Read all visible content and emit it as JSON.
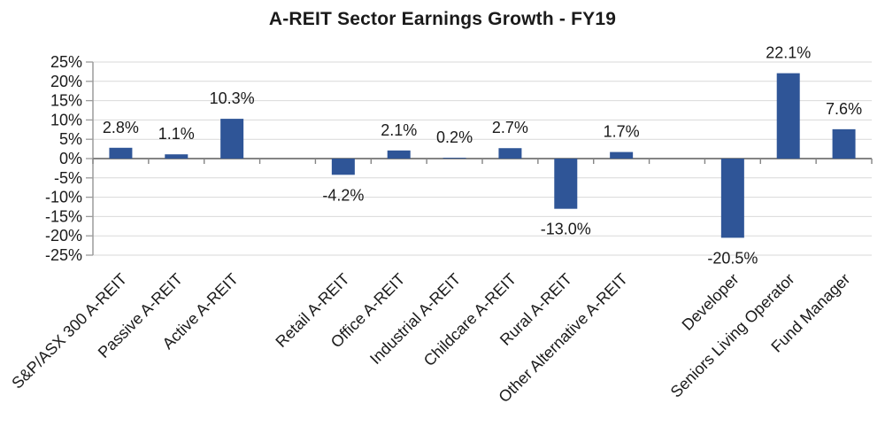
{
  "chart_data": {
    "type": "bar",
    "title": "A-REIT Sector Earnings Growth - FY19",
    "legend": "none",
    "grid": true,
    "bar_color": "#2F5597",
    "colors": {
      "gridline": "#D9D9D9",
      "axis_line": "#9B9B9B",
      "zero_line": "#848484",
      "text": "#1A1A1A"
    },
    "axis": {
      "ylim": [
        -25,
        25
      ],
      "step": 5,
      "y_ticks": [
        "25%",
        "20%",
        "15%",
        "10%",
        "5%",
        "0%",
        "-5%",
        "-10%",
        "-15%",
        "-20%",
        "-25%"
      ]
    },
    "total_slots": 14,
    "gap_slots": [
      3,
      10
    ],
    "bars": [
      {
        "category": "S&P/ASX 300 A-REIT",
        "value": 2.8,
        "label": "2.8%",
        "slot": 0
      },
      {
        "category": "Passive A-REIT",
        "value": 1.1,
        "label": "1.1%",
        "slot": 1
      },
      {
        "category": "Active A-REIT",
        "value": 10.3,
        "label": "10.3%",
        "slot": 2
      },
      {
        "category": "Retail A-REIT",
        "value": -4.2,
        "label": "-4.2%",
        "slot": 4
      },
      {
        "category": "Office A-REIT",
        "value": 2.1,
        "label": "2.1%",
        "slot": 5
      },
      {
        "category": "Industrial A-REIT",
        "value": 0.2,
        "label": "0.2%",
        "slot": 6
      },
      {
        "category": "Childcare A-REIT",
        "value": 2.7,
        "label": "2.7%",
        "slot": 7
      },
      {
        "category": "Rural A-REIT",
        "value": -13.0,
        "label": "-13.0%",
        "slot": 8
      },
      {
        "category": "Other Alternative A-REIT",
        "value": 1.7,
        "label": "1.7%",
        "slot": 9
      },
      {
        "category": "Developer",
        "value": -20.5,
        "label": "-20.5%",
        "slot": 11
      },
      {
        "category": "Seniors Living Operator",
        "value": 22.1,
        "label": "22.1%",
        "slot": 12
      },
      {
        "category": "Fund Manager",
        "value": 7.6,
        "label": "7.6%",
        "slot": 13
      }
    ]
  }
}
